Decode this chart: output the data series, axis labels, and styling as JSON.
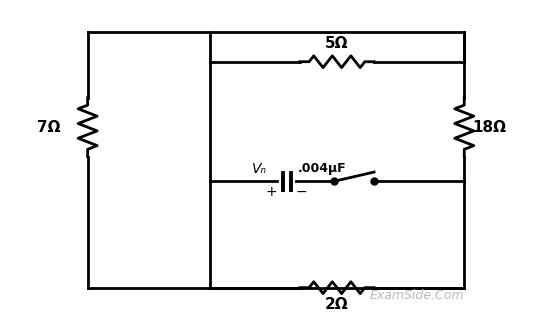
{
  "background_color": "#ffffff",
  "line_color": "#000000",
  "line_width": 2.0,
  "fig_width": 5.36,
  "fig_height": 3.33,
  "dpi": 100,
  "resistor_7_label": "7Ω",
  "resistor_5_label": "5Ω",
  "resistor_18_label": "18Ω",
  "resistor_2_label": "2Ω",
  "capacitor_label": ".004μF",
  "vc_label": "Vₙ",
  "plus_label": "+",
  "minus_label": "−",
  "watermark": "ExamSide.Com",
  "watermark_color": "#bbbbbb",
  "watermark_fontsize": 9
}
